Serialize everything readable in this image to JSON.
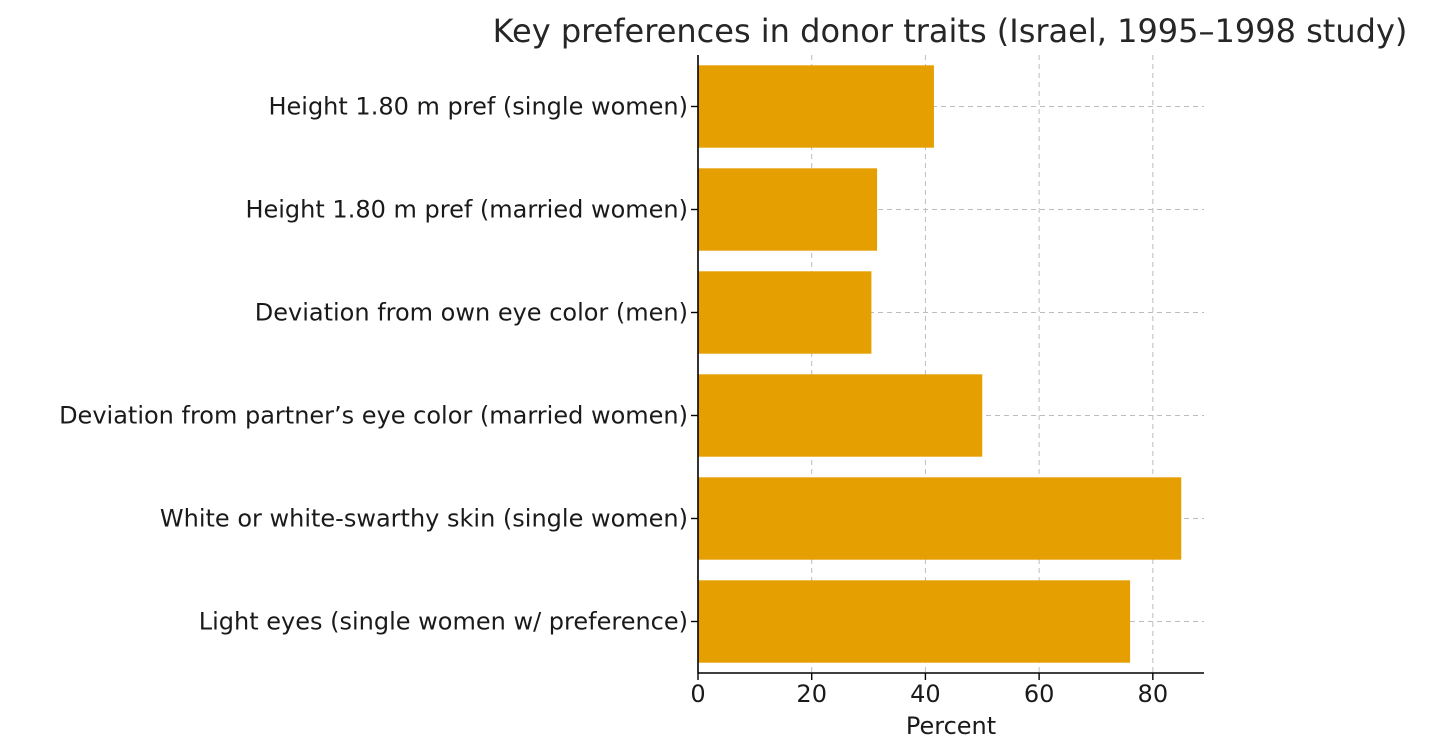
{
  "chart_data": {
    "type": "bar",
    "orientation": "horizontal",
    "title": "Key preferences in donor traits (Israel, 1995–1998 study)",
    "xlabel": "Percent",
    "ylabel": "",
    "categories": [
      "Height 1.80 m pref (single women)",
      "Height 1.80 m pref (married women)",
      "Deviation from own eye color (men)",
      "Deviation from partner’s eye color (married women)",
      "White or white-swarthy skin (single women)",
      "Light eyes (single women w/ preference)"
    ],
    "values": [
      41.5,
      31.5,
      30.5,
      50,
      85,
      76
    ],
    "xlim": [
      0,
      89
    ],
    "xticks": [
      0,
      20,
      40,
      60,
      80
    ],
    "grid": true,
    "legend": "none",
    "colors": {
      "bar": "#E69F00"
    }
  }
}
